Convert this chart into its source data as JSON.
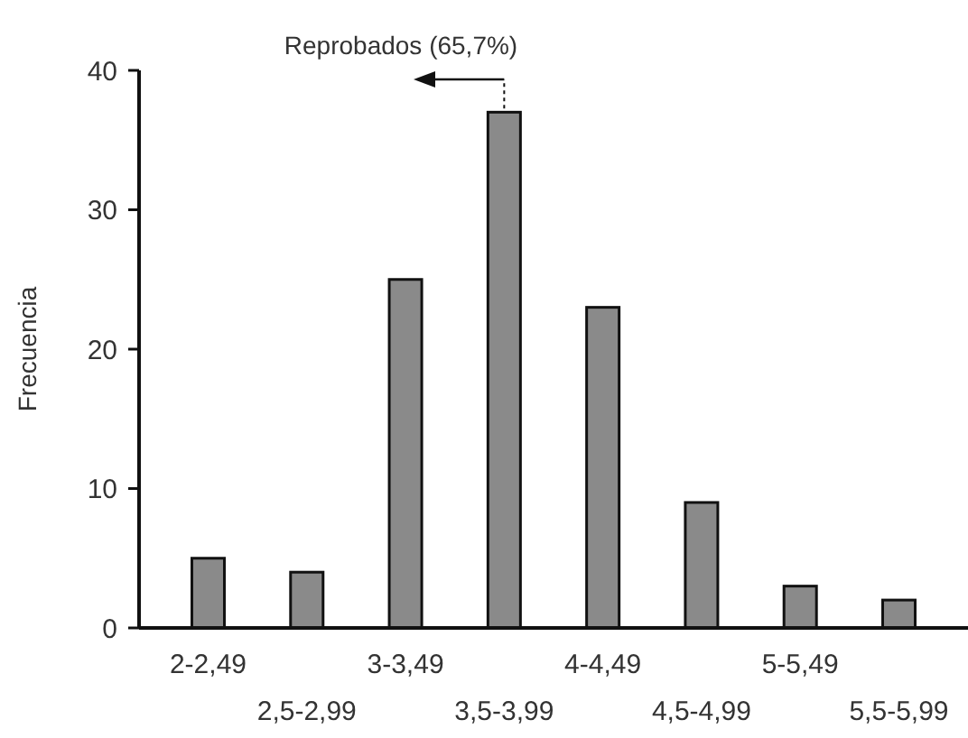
{
  "chart_data": {
    "type": "bar",
    "ylabel": "Frecuencia",
    "categories": [
      "2-2,49",
      "2,5-2,99",
      "3-3,49",
      "3,5-3,99",
      "4-4,49",
      "4,5-4,99",
      "5-5,49",
      "5,5-5,99"
    ],
    "values": [
      5,
      4,
      25,
      37,
      23,
      9,
      3,
      2
    ],
    "color": "#8a8a8a",
    "ylim": [
      0,
      40
    ],
    "yticks": [
      0,
      10,
      20,
      30,
      40
    ],
    "grid": false,
    "annotations": [
      "Reprobados (65,7%)"
    ]
  }
}
